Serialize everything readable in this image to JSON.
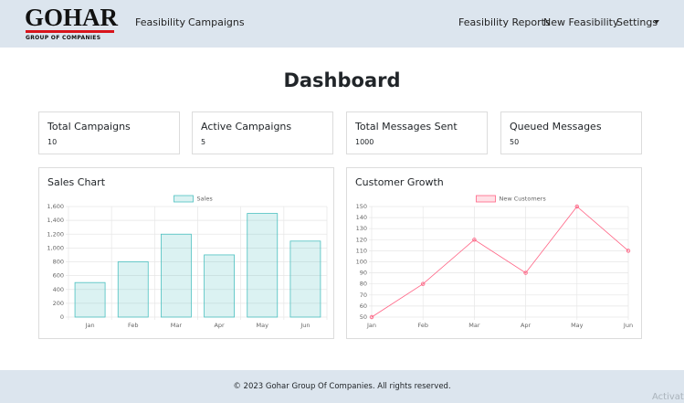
{
  "navbar": {
    "logo": "GOHAR",
    "logo_tagline": "GROUP OF COMPANIES",
    "left_links": [
      "Feasibility",
      "Campaigns"
    ],
    "right_links": [
      "Feasibility Reports",
      "New Feasibility",
      "Settings"
    ]
  },
  "page_title": "Dashboard",
  "cards": [
    {
      "title": "Total Campaigns",
      "value": "10"
    },
    {
      "title": "Active Campaigns",
      "value": "5"
    },
    {
      "title": "Total Messages Sent",
      "value": "1000"
    },
    {
      "title": "Queued Messages",
      "value": "50"
    }
  ],
  "chart_data": [
    {
      "type": "bar",
      "title": "Sales Chart",
      "categories": [
        "Jan",
        "Feb",
        "Mar",
        "Apr",
        "May",
        "Jun"
      ],
      "series": [
        {
          "name": "Sales",
          "color": "#4bc0c0",
          "fill": "rgba(75,192,192,0.2)",
          "values": [
            500,
            800,
            1200,
            900,
            1500,
            1100
          ]
        }
      ],
      "ylim": [
        0,
        1600
      ],
      "yticks": [
        0,
        200,
        400,
        600,
        800,
        {
          "value": 1000,
          "label": "1,000"
        },
        {
          "value": 1200,
          "label": "1,200"
        },
        {
          "value": 1400,
          "label": "1,400"
        },
        {
          "value": 1600,
          "label": "1,600"
        }
      ],
      "grid": true,
      "legend": "top"
    },
    {
      "type": "line",
      "title": "Customer Growth",
      "categories": [
        "Jan",
        "Feb",
        "Mar",
        "Apr",
        "May",
        "Jun"
      ],
      "series": [
        {
          "name": "New Customers",
          "color": "#ff6384",
          "fill": "rgba(255,99,132,0.2)",
          "values": [
            50,
            80,
            120,
            90,
            150,
            110
          ]
        }
      ],
      "ylim": [
        50,
        150
      ],
      "yticks": [
        50,
        60,
        70,
        80,
        90,
        100,
        110,
        120,
        130,
        140,
        150
      ],
      "grid": true,
      "legend": "top"
    }
  ],
  "footer": "© 2023 Gohar Group Of Companies. All rights reserved.",
  "watermark": "Activat"
}
